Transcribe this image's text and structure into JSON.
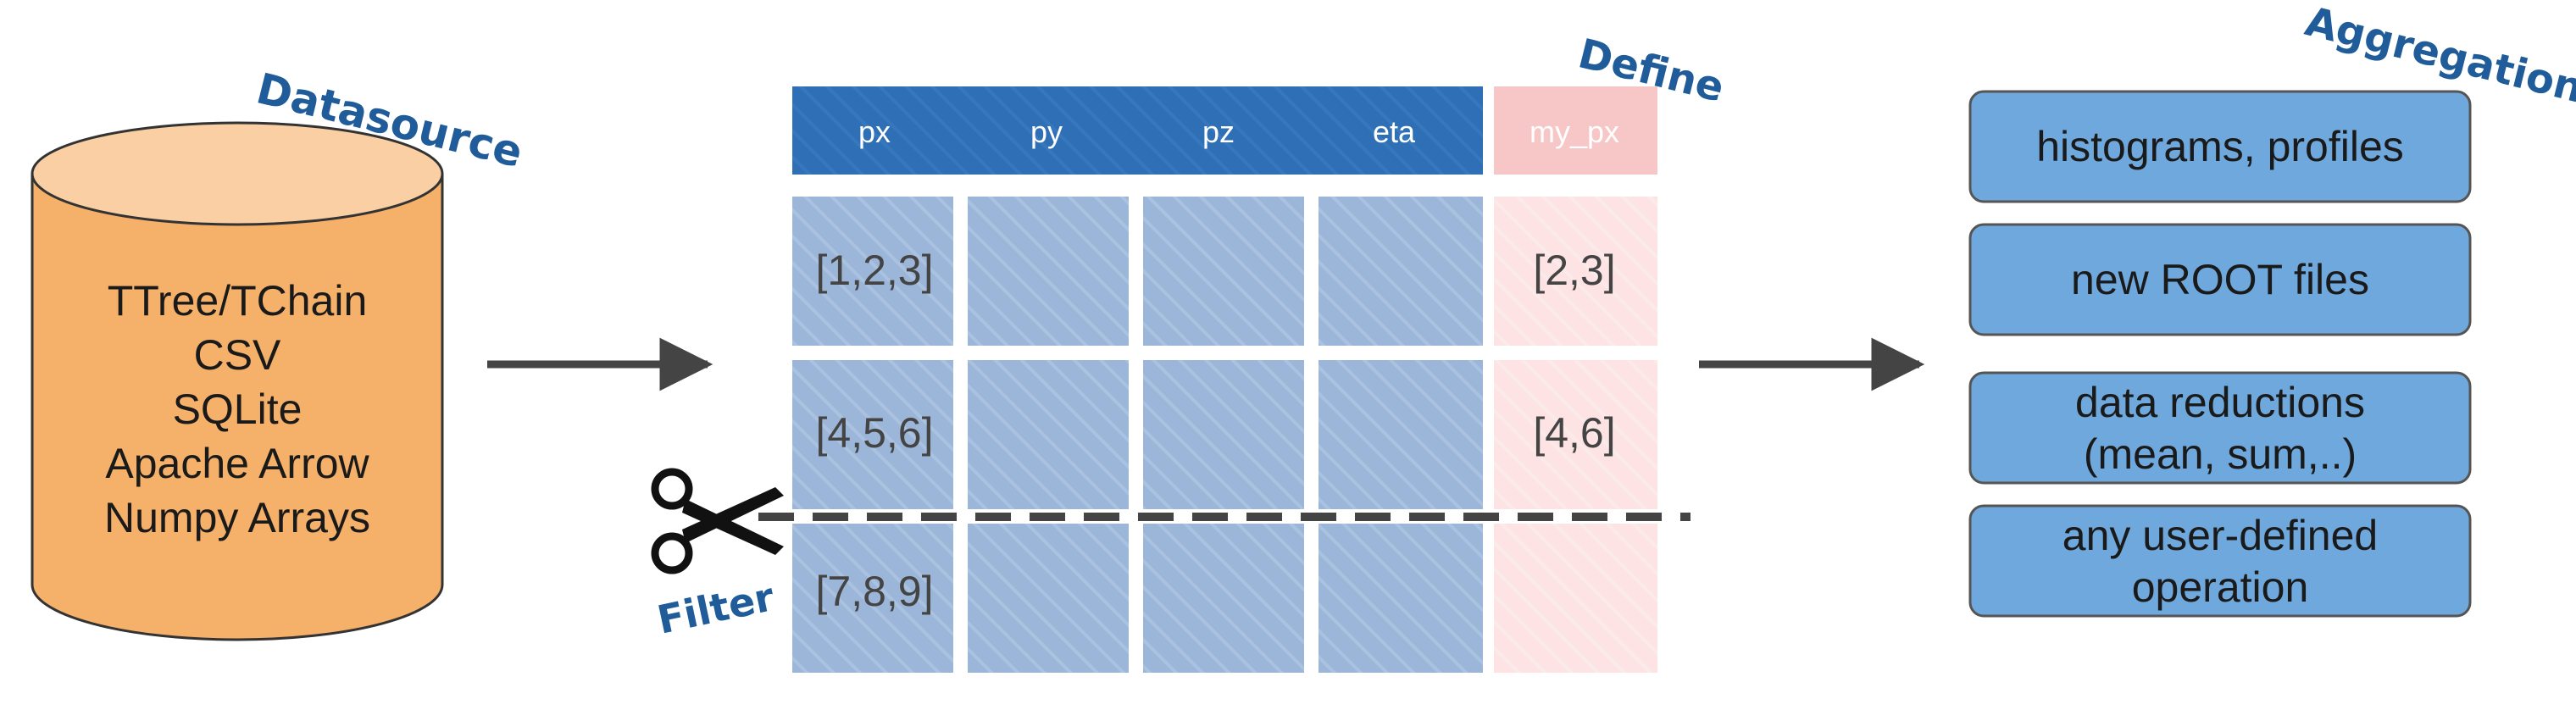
{
  "labels": {
    "datasource": "Datasource",
    "define": "Define",
    "filter": "Filter",
    "aggregations": "Aggregations"
  },
  "datasource": {
    "items": [
      "TTree/TChain",
      "CSV",
      "SQLite",
      "Apache Arrow",
      "Numpy Arrays"
    ]
  },
  "table": {
    "headers": [
      "px",
      "py",
      "pz",
      "eta"
    ],
    "define_header": "my_px",
    "rows": [
      {
        "first": "[1,2,3]",
        "define": "[2,3]"
      },
      {
        "first": "[4,5,6]",
        "define": "[4,6]"
      },
      {
        "first": "[7,8,9]",
        "define": ""
      }
    ]
  },
  "aggregations": {
    "boxes": [
      {
        "lines": [
          "histograms, profiles"
        ]
      },
      {
        "lines": [
          "new ROOT files"
        ]
      },
      {
        "lines": [
          "data reductions",
          "(mean, sum,..)"
        ]
      },
      {
        "lines": [
          "any user-defined",
          "operation"
        ]
      }
    ]
  },
  "colors": {
    "cylinder_fill": "#f5b06a",
    "cylinder_top": "#f9cfa3",
    "cylinder_stroke": "#333333",
    "header_blue": "#2e6fb5",
    "cell_blue": "#9bb6d8",
    "define_header": "#f7c6c6",
    "define_cell": "#fde3e3",
    "agg_box": "#6fa8dc",
    "label_blue": "#1f5c99",
    "arrow": "#444444"
  }
}
